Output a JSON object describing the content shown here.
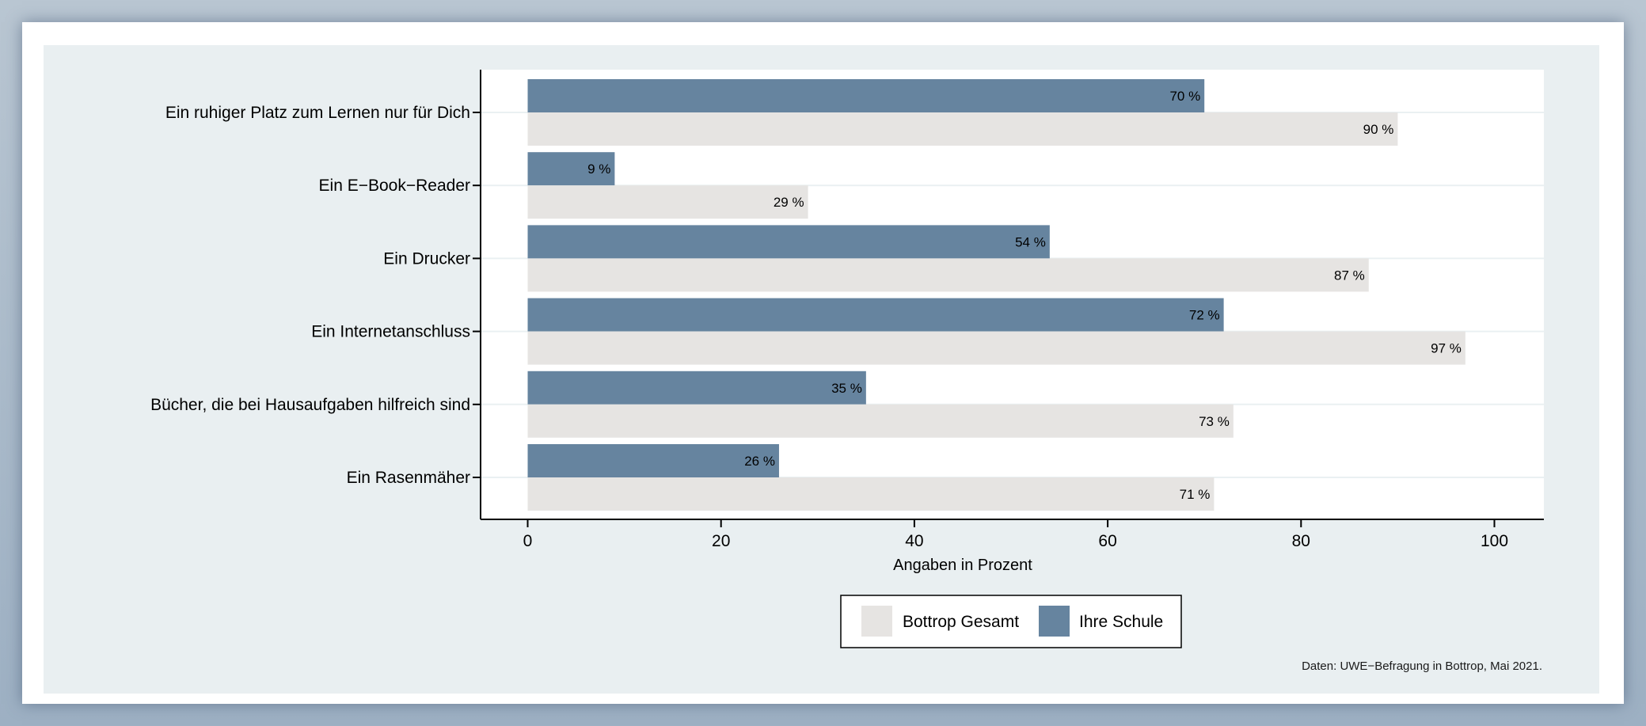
{
  "chart_data": {
    "type": "bar",
    "orientation": "horizontal",
    "categories": [
      "Ein ruhiger Platz zum Lernen nur für Dich",
      "Ein E−Book−Reader",
      "Ein Drucker",
      "Ein Internetanschluss",
      "Bücher, die bei Hausaufgaben hilfreich sind",
      "Ein Rasenmäher"
    ],
    "series": [
      {
        "name": "Ihre Schule",
        "color": "#66849f",
        "values": [
          70,
          9,
          54,
          72,
          35,
          26
        ],
        "labels": [
          "70 %",
          "9 %",
          "54 %",
          "72 %",
          "35 %",
          "26 %"
        ]
      },
      {
        "name": "Bottrop Gesamt",
        "color": "#e6e4e2",
        "values": [
          90,
          29,
          87,
          97,
          73,
          71
        ],
        "labels": [
          "90 %",
          "29 %",
          "87 %",
          "97 %",
          "73 %",
          "71 %"
        ]
      }
    ],
    "xlabel": "Angaben in Prozent",
    "xticks": [
      0,
      20,
      40,
      60,
      80,
      100
    ],
    "xlim": [
      -5,
      105
    ],
    "grid": true,
    "legend": {
      "placement": "bottom",
      "order": [
        "Bottrop Gesamt",
        "Ihre Schule"
      ]
    },
    "note": "Daten: UWE−Befragung in Bottrop, Mai 2021.",
    "colors": {
      "outer_background": "#e9eff1",
      "plot_background": "#ffffff",
      "gridline": "#eaf0f2",
      "axis": "#000000"
    }
  }
}
